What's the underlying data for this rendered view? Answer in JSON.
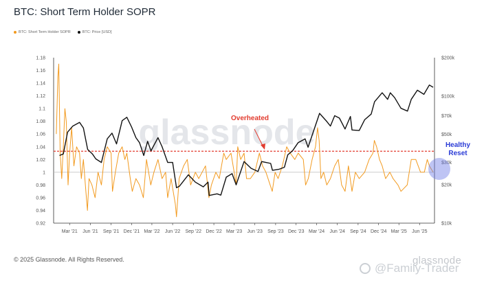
{
  "header": {
    "title": "BTC: Short Term Holder SOPR"
  },
  "legend": [
    {
      "label": "BTC: Short Term Holder SOPR",
      "color": "#f29a1f"
    },
    {
      "label": "BTC: Price [USD]",
      "color": "#111111"
    }
  ],
  "footer": {
    "copyright": "© 2025 Glassnode. All Rights Reserved.",
    "brand": "glassnode",
    "watermark_user": "@Family-Trader"
  },
  "chart_data": {
    "type": "line",
    "watermark": "glassnode",
    "x_ticks": [
      "Mar '21",
      "Jun '21",
      "Sep '21",
      "Dec '21",
      "Mar '22",
      "Jun '22",
      "Sep '22",
      "Dec '22",
      "Mar '23",
      "Jun '23",
      "Sep '23",
      "Dec '23",
      "Mar '24",
      "Jun '24",
      "Sep '24",
      "Dec '24",
      "Mar '25",
      "Jun '25"
    ],
    "y_left": {
      "ticks": [
        "1.18",
        "1.16",
        "1.14",
        "1.12",
        "1.1",
        "1.08",
        "1.06",
        "1.04",
        "1.02",
        "1",
        "0.98",
        "0.96",
        "0.94",
        "0.92"
      ],
      "min": 0.92,
      "max": 1.18
    },
    "y_right": {
      "ticks": [
        "$200k",
        "$100k",
        "$70k",
        "$50k",
        "$30k",
        "$20k",
        "$10k"
      ],
      "values": [
        200000,
        100000,
        70000,
        50000,
        30000,
        20000,
        10000
      ],
      "scale": "log"
    },
    "reference_lines": [
      {
        "value": 1.0,
        "axis": "left",
        "color": "#bbbbbb"
      },
      {
        "value": 1.033,
        "axis": "left",
        "color": "#e23b2e",
        "style": "dashed"
      }
    ],
    "annotations": [
      {
        "text": "Overheated",
        "color": "#e23b2e"
      },
      {
        "text": "Healthy",
        "color": "#2a3bd6"
      },
      {
        "text": "Reset",
        "color": "#2a3bd6"
      }
    ],
    "series": [
      {
        "name": "BTC: Price [USD]",
        "axis": "right",
        "color": "#111111",
        "points": [
          [
            "2021-01-15",
            34000
          ],
          [
            "2021-02-01",
            35000
          ],
          [
            "2021-02-20",
            52000
          ],
          [
            "2021-03-15",
            58000
          ],
          [
            "2021-04-14",
            62000
          ],
          [
            "2021-05-01",
            56000
          ],
          [
            "2021-05-20",
            38000
          ],
          [
            "2021-06-10",
            35000
          ],
          [
            "2021-06-25",
            32000
          ],
          [
            "2021-07-20",
            30000
          ],
          [
            "2021-08-15",
            46000
          ],
          [
            "2021-09-05",
            51000
          ],
          [
            "2021-09-25",
            42000
          ],
          [
            "2021-10-20",
            64000
          ],
          [
            "2021-11-10",
            68000
          ],
          [
            "2021-12-01",
            57000
          ],
          [
            "2021-12-20",
            47000
          ],
          [
            "2022-01-05",
            43000
          ],
          [
            "2022-01-24",
            34000
          ],
          [
            "2022-02-10",
            44000
          ],
          [
            "2022-02-25",
            37000
          ],
          [
            "2022-03-28",
            47000
          ],
          [
            "2022-04-15",
            40000
          ],
          [
            "2022-05-10",
            30000
          ],
          [
            "2022-06-01",
            30000
          ],
          [
            "2022-06-18",
            19000
          ],
          [
            "2022-07-01",
            19500
          ],
          [
            "2022-08-10",
            24000
          ],
          [
            "2022-09-10",
            21000
          ],
          [
            "2022-10-15",
            19300
          ],
          [
            "2022-11-05",
            21000
          ],
          [
            "2022-11-10",
            16500
          ],
          [
            "2022-12-15",
            17000
          ],
          [
            "2023-01-01",
            16600
          ],
          [
            "2023-01-25",
            23000
          ],
          [
            "2023-02-20",
            24500
          ],
          [
            "2023-03-10",
            20000
          ],
          [
            "2023-04-14",
            30500
          ],
          [
            "2023-05-15",
            27000
          ],
          [
            "2023-06-15",
            25500
          ],
          [
            "2023-07-01",
            30500
          ],
          [
            "2023-08-10",
            29500
          ],
          [
            "2023-08-18",
            26000
          ],
          [
            "2023-09-15",
            26500
          ],
          [
            "2023-10-10",
            27500
          ],
          [
            "2023-10-25",
            34500
          ],
          [
            "2023-11-15",
            37000
          ],
          [
            "2023-12-10",
            43000
          ],
          [
            "2024-01-10",
            46000
          ],
          [
            "2024-01-23",
            39500
          ],
          [
            "2024-02-15",
            52000
          ],
          [
            "2024-03-14",
            73000
          ],
          [
            "2024-04-15",
            63000
          ],
          [
            "2024-05-01",
            58000
          ],
          [
            "2024-05-20",
            70000
          ],
          [
            "2024-06-10",
            67000
          ],
          [
            "2024-07-05",
            55000
          ],
          [
            "2024-07-29",
            69000
          ],
          [
            "2024-08-05",
            54000
          ],
          [
            "2024-09-06",
            53500
          ],
          [
            "2024-09-30",
            65000
          ],
          [
            "2024-10-29",
            72000
          ],
          [
            "2024-11-13",
            90000
          ],
          [
            "2024-12-17",
            106000
          ],
          [
            "2025-01-10",
            94000
          ],
          [
            "2025-01-22",
            106000
          ],
          [
            "2025-02-10",
            97000
          ],
          [
            "2025-03-10",
            80000
          ],
          [
            "2025-04-08",
            76000
          ],
          [
            "2025-04-25",
            94000
          ],
          [
            "2025-05-22",
            111000
          ],
          [
            "2025-06-20",
            103000
          ],
          [
            "2025-07-14",
            122000
          ],
          [
            "2025-07-31",
            117000
          ]
        ]
      },
      {
        "name": "BTC: Short Term Holder SOPR",
        "axis": "left",
        "color": "#f29a1f",
        "points": [
          [
            "2021-01-01",
            1.06
          ],
          [
            "2021-01-08",
            1.15
          ],
          [
            "2021-01-12",
            1.17
          ],
          [
            "2021-01-18",
            1.03
          ],
          [
            "2021-01-25",
            0.99
          ],
          [
            "2021-02-01",
            1.04
          ],
          [
            "2021-02-08",
            1.1
          ],
          [
            "2021-02-14",
            1.08
          ],
          [
            "2021-02-22",
            0.98
          ],
          [
            "2021-03-01",
            1.03
          ],
          [
            "2021-03-10",
            1.07
          ],
          [
            "2021-03-20",
            1.01
          ],
          [
            "2021-04-01",
            1.04
          ],
          [
            "2021-04-14",
            1.03
          ],
          [
            "2021-04-22",
            0.99
          ],
          [
            "2021-05-01",
            1.02
          ],
          [
            "2021-05-12",
            0.97
          ],
          [
            "2021-05-19",
            0.94
          ],
          [
            "2021-05-26",
            0.99
          ],
          [
            "2021-06-08",
            0.98
          ],
          [
            "2021-06-22",
            0.96
          ],
          [
            "2021-07-05",
            1.0
          ],
          [
            "2021-07-20",
            0.98
          ],
          [
            "2021-08-01",
            1.02
          ],
          [
            "2021-08-15",
            1.04
          ],
          [
            "2021-09-01",
            1.03
          ],
          [
            "2021-09-07",
            0.97
          ],
          [
            "2021-09-20",
            1.0
          ],
          [
            "2021-10-05",
            1.03
          ],
          [
            "2021-10-20",
            1.04
          ],
          [
            "2021-11-01",
            1.02
          ],
          [
            "2021-11-10",
            1.03
          ],
          [
            "2021-11-25",
            0.99
          ],
          [
            "2021-12-04",
            0.97
          ],
          [
            "2021-12-20",
            0.99
          ],
          [
            "2022-01-05",
            0.98
          ],
          [
            "2022-01-22",
            0.96
          ],
          [
            "2022-02-05",
            1.02
          ],
          [
            "2022-02-24",
            0.98
          ],
          [
            "2022-03-10",
            1.0
          ],
          [
            "2022-03-28",
            1.02
          ],
          [
            "2022-04-15",
            0.99
          ],
          [
            "2022-05-01",
            1.0
          ],
          [
            "2022-05-10",
            0.96
          ],
          [
            "2022-05-25",
            0.99
          ],
          [
            "2022-06-13",
            0.95
          ],
          [
            "2022-06-18",
            0.93
          ],
          [
            "2022-06-30",
            0.99
          ],
          [
            "2022-07-20",
            1.01
          ],
          [
            "2022-08-05",
            1.02
          ],
          [
            "2022-08-20",
            0.98
          ],
          [
            "2022-09-10",
            1.0
          ],
          [
            "2022-09-25",
            0.99
          ],
          [
            "2022-10-10",
            1.0
          ],
          [
            "2022-10-25",
            1.01
          ],
          [
            "2022-11-09",
            0.96
          ],
          [
            "2022-11-20",
            0.98
          ],
          [
            "2022-12-10",
            1.0
          ],
          [
            "2022-12-25",
            0.99
          ],
          [
            "2023-01-14",
            1.03
          ],
          [
            "2023-01-25",
            1.02
          ],
          [
            "2023-02-15",
            1.03
          ],
          [
            "2023-03-01",
            1.0
          ],
          [
            "2023-03-10",
            0.98
          ],
          [
            "2023-03-17",
            1.04
          ],
          [
            "2023-03-30",
            1.02
          ],
          [
            "2023-04-14",
            1.03
          ],
          [
            "2023-04-25",
            0.99
          ],
          [
            "2023-05-12",
            0.99
          ],
          [
            "2023-06-01",
            1.0
          ],
          [
            "2023-06-21",
            1.03
          ],
          [
            "2023-07-05",
            1.01
          ],
          [
            "2023-07-20",
            1.0
          ],
          [
            "2023-08-17",
            0.97
          ],
          [
            "2023-08-30",
            1.0
          ],
          [
            "2023-09-12",
            0.99
          ],
          [
            "2023-10-01",
            1.01
          ],
          [
            "2023-10-20",
            1.04
          ],
          [
            "2023-11-05",
            1.03
          ],
          [
            "2023-11-25",
            1.02
          ],
          [
            "2023-12-10",
            1.03
          ],
          [
            "2024-01-02",
            1.02
          ],
          [
            "2024-01-12",
            0.98
          ],
          [
            "2024-01-24",
            0.99
          ],
          [
            "2024-02-10",
            1.02
          ],
          [
            "2024-02-25",
            1.04
          ],
          [
            "2024-03-05",
            1.07
          ],
          [
            "2024-03-12",
            1.05
          ],
          [
            "2024-03-20",
            0.99
          ],
          [
            "2024-04-01",
            1.0
          ],
          [
            "2024-04-15",
            0.98
          ],
          [
            "2024-05-01",
            0.99
          ],
          [
            "2024-05-20",
            1.01
          ],
          [
            "2024-06-05",
            1.02
          ],
          [
            "2024-06-20",
            0.98
          ],
          [
            "2024-07-05",
            0.97
          ],
          [
            "2024-07-20",
            1.01
          ],
          [
            "2024-08-05",
            0.97
          ],
          [
            "2024-08-20",
            1.0
          ],
          [
            "2024-09-06",
            0.99
          ],
          [
            "2024-09-30",
            1.0
          ],
          [
            "2024-10-20",
            1.02
          ],
          [
            "2024-11-06",
            1.03
          ],
          [
            "2024-11-12",
            1.05
          ],
          [
            "2024-11-22",
            1.04
          ],
          [
            "2024-12-05",
            1.02
          ],
          [
            "2024-12-17",
            1.01
          ],
          [
            "2025-01-01",
            0.99
          ],
          [
            "2025-01-20",
            1.0
          ],
          [
            "2025-02-03",
            0.99
          ],
          [
            "2025-02-25",
            0.98
          ],
          [
            "2025-03-10",
            0.97
          ],
          [
            "2025-04-07",
            0.98
          ],
          [
            "2025-04-25",
            1.02
          ],
          [
            "2025-05-15",
            1.02
          ],
          [
            "2025-06-05",
            1.0
          ],
          [
            "2025-06-22",
            1.0
          ],
          [
            "2025-07-05",
            1.02
          ],
          [
            "2025-07-14",
            1.01
          ],
          [
            "2025-07-31",
            1.0
          ]
        ]
      }
    ]
  }
}
